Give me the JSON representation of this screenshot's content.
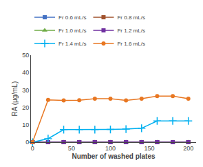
{
  "chart_data": {
    "type": "line",
    "xlabel": "Number of washed plates",
    "ylabel": "RA (μg/mL)",
    "x": [
      0,
      20,
      40,
      60,
      80,
      100,
      120,
      140,
      160,
      180,
      200
    ],
    "series": [
      {
        "name": "Fr 0.6 mL/s",
        "color": "#4472C4",
        "marker": "square",
        "values": [
          0,
          0,
          0,
          0,
          0,
          0,
          0,
          0,
          0,
          0,
          0
        ]
      },
      {
        "name": "Fr 0.8 mL/s",
        "color": "#A0522D",
        "marker": "square",
        "values": [
          0,
          0,
          0,
          0,
          0,
          0,
          0,
          0,
          0,
          0,
          0
        ]
      },
      {
        "name": "Fr 1.0 mL/s",
        "color": "#70AD47",
        "marker": "triangle",
        "values": [
          0,
          0,
          0,
          0,
          0,
          0,
          0,
          0,
          0,
          0,
          0
        ]
      },
      {
        "name": "Fr 1.2 mL/s",
        "color": "#7030A0",
        "marker": "square",
        "values": [
          0,
          0,
          0,
          0,
          0,
          0,
          0,
          0,
          0,
          0,
          0
        ]
      },
      {
        "name": "Fr 1.4 mL/s",
        "color": "#00B0F0",
        "marker": "plus",
        "values": [
          0,
          2.0,
          7.2,
          7.2,
          7.2,
          7.3,
          7.5,
          8.0,
          12.2,
          12.2,
          12.2
        ]
      },
      {
        "name": "Fr 1.6 mL/s",
        "color": "#E87722",
        "marker": "circle",
        "values": [
          0,
          24.3,
          24.0,
          24.1,
          25.0,
          25.0,
          24.0,
          25.0,
          26.5,
          26.5,
          25.0
        ]
      }
    ],
    "xlim": [
      -2,
      210
    ],
    "xticks": [
      0,
      50,
      100,
      150,
      200
    ],
    "ylim": [
      0,
      50
    ],
    "yticks": [
      0,
      10,
      20,
      30,
      40,
      50
    ],
    "grid": false,
    "legend": "upper left"
  }
}
